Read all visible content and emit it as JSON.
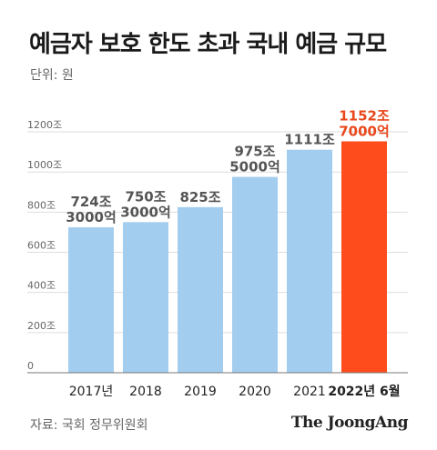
{
  "header": {
    "title": "예금자 보호 한도 초과 국내 예금 규모",
    "unit": "단위: 원"
  },
  "footer": {
    "source": "자료: 국회 정무위원회",
    "logo": "The JoongAng"
  },
  "colors": {
    "bar": "#a3cdef",
    "highlight": "#ff4c1c",
    "grid": "#dddddd",
    "axis": "#777777"
  },
  "chart_data": {
    "type": "bar",
    "categories": [
      "2017년",
      "2018",
      "2019",
      "2020",
      "2021",
      "2022년 6월"
    ],
    "values": [
      724.3,
      750.3,
      825,
      975.5,
      1111,
      1152.7
    ],
    "data_labels": [
      [
        "724조",
        "3000억"
      ],
      [
        "750조",
        "3000억"
      ],
      [
        "825조"
      ],
      [
        "975조",
        "5000억"
      ],
      [
        "1111조"
      ],
      [
        "1152조",
        "7000억"
      ]
    ],
    "highlight_index": 5,
    "y_ticks": [
      0,
      200,
      400,
      600,
      800,
      1000,
      1200
    ],
    "y_tick_labels": [
      "0",
      "200조",
      "400조",
      "600조",
      "800조",
      "1000조",
      "1200조"
    ],
    "ylim": [
      0,
      1250
    ],
    "grid": true
  }
}
